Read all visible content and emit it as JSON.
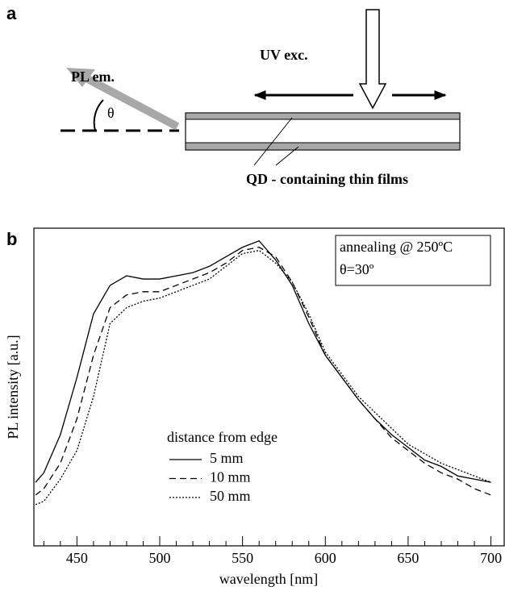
{
  "panel_a": {
    "label": "a",
    "emission_label": "PL em.",
    "angle_label": "θ",
    "excitation_label": "UV exc.",
    "film_label": "QD - containing thin films"
  },
  "chart_data": {
    "type": "line",
    "panel_label": "b",
    "xlabel": "wavelength [nm]",
    "ylabel": "PL intensity [a.u.]",
    "xlim": [
      424,
      708
    ],
    "ylim": [
      0,
      1
    ],
    "xticks": [
      450,
      500,
      550,
      600,
      650,
      700
    ],
    "xminorticks": [
      430,
      440,
      460,
      470,
      480,
      490,
      510,
      520,
      530,
      540,
      560,
      570,
      580,
      590,
      610,
      620,
      630,
      640,
      660,
      670,
      680,
      690
    ],
    "annotation": [
      "annealing @ 250ºC",
      "θ=30º"
    ],
    "legend_title": "distance from edge",
    "x": [
      425,
      430,
      440,
      450,
      460,
      470,
      480,
      490,
      500,
      510,
      520,
      530,
      540,
      550,
      560,
      570,
      580,
      590,
      600,
      610,
      620,
      630,
      640,
      650,
      660,
      670,
      680,
      690,
      700
    ],
    "series": [
      {
        "name": "5 mm",
        "color": "#000000",
        "dash": "solid",
        "values": [
          0.2,
          0.23,
          0.35,
          0.53,
          0.73,
          0.82,
          0.85,
          0.84,
          0.84,
          0.85,
          0.86,
          0.88,
          0.91,
          0.94,
          0.96,
          0.9,
          0.82,
          0.7,
          0.6,
          0.53,
          0.46,
          0.4,
          0.35,
          0.31,
          0.27,
          0.25,
          0.22,
          0.21,
          0.2
        ]
      },
      {
        "name": "10 mm",
        "color": "#000000",
        "dash": "dashed",
        "values": [
          0.16,
          0.18,
          0.26,
          0.4,
          0.6,
          0.75,
          0.79,
          0.8,
          0.8,
          0.82,
          0.84,
          0.86,
          0.89,
          0.93,
          0.94,
          0.91,
          0.83,
          0.72,
          0.6,
          0.53,
          0.46,
          0.4,
          0.34,
          0.3,
          0.26,
          0.23,
          0.21,
          0.18,
          0.16
        ]
      },
      {
        "name": "50 mm",
        "color": "#000000",
        "dash": "dotted",
        "values": [
          0.13,
          0.14,
          0.21,
          0.3,
          0.47,
          0.7,
          0.75,
          0.77,
          0.78,
          0.8,
          0.82,
          0.84,
          0.88,
          0.92,
          0.93,
          0.89,
          0.83,
          0.73,
          0.61,
          0.54,
          0.47,
          0.42,
          0.37,
          0.32,
          0.29,
          0.26,
          0.24,
          0.22,
          0.2
        ]
      }
    ]
  }
}
